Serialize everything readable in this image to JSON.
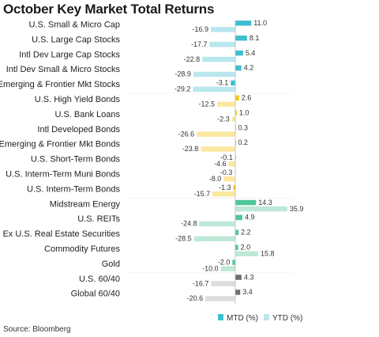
{
  "chart_data": {
    "type": "bar",
    "orientation": "horizontal",
    "title": "October Key Market Total Returns",
    "categories": [
      "U.S. Small & Micro Cap",
      "U.S. Large Cap Stocks",
      "Intl Dev Large Cap Stocks",
      "Intl Dev Small & Micro Stocks",
      "Emerging & Frontier Mkt Stocks",
      "U.S. High Yield Bonds",
      "U.S. Bank Loans",
      "Intl Developed Bonds",
      "Emerging & Frontier Mkt Bonds",
      "U.S. Short-Term Bonds",
      "U.S. Interm-Term Muni Bonds",
      "U.S. Interm-Term Bonds",
      "Midstream Energy",
      "U.S. REITs",
      "Ex U.S. Real Estate Securities",
      "Commodity Futures",
      "Gold",
      "U.S. 60/40",
      "Global 60/40"
    ],
    "series": [
      {
        "name": "MTD (%)",
        "values": [
          11.0,
          8.1,
          5.4,
          4.2,
          -3.1,
          2.6,
          1.0,
          0.3,
          0.2,
          -0.1,
          -0.3,
          -1.3,
          14.3,
          4.9,
          2.2,
          2.0,
          -2.0,
          4.3,
          3.4
        ]
      },
      {
        "name": "YTD (%)",
        "values": [
          -16.9,
          -17.7,
          -22.8,
          -28.9,
          -29.2,
          -12.5,
          -2.3,
          -26.6,
          -23.8,
          -4.6,
          -8.0,
          -15.7,
          35.9,
          -24.8,
          -28.5,
          15.8,
          -10.0,
          -16.7,
          -20.6
        ]
      }
    ],
    "value_labels": {
      "mtd": [
        "11.0",
        "8.1",
        "5.4",
        "4.2",
        "-3.1",
        "2.6",
        "1.0",
        "0.3",
        "0.2",
        "-0.1",
        "-0.3",
        "-1.3",
        "14.3",
        "4.9",
        "2.2",
        "2.0",
        "-2.0",
        "4.3",
        "3.4"
      ],
      "ytd": [
        "-16.9",
        "-17.7",
        "-22.8",
        "-28.9",
        "-29.2",
        "-12.5",
        "-2.3",
        "-26.6",
        "-23.8",
        "-4.6",
        "-8.0",
        "-15.7",
        "35.9",
        "-24.8",
        "-28.5",
        "15.8",
        "-10.0",
        "-16.7",
        "-20.6"
      ]
    },
    "group_colors": {
      "equity": {
        "mtd": "#3dbfcf",
        "ytd": "#b9e7ee"
      },
      "bond": {
        "mtd": "#f5c518",
        "ytd": "#fbe8a0"
      },
      "real_asset": {
        "mtd": "#4ec79a",
        "ytd": "#bde9d6"
      },
      "balanced": {
        "mtd": "#6e6e6e",
        "ytd": "#dddddd"
      }
    },
    "category_groups": [
      "equity",
      "equity",
      "equity",
      "equity",
      "equity",
      "bond",
      "bond",
      "bond",
      "bond",
      "bond",
      "bond",
      "bond",
      "real_asset",
      "real_asset",
      "real_asset",
      "real_asset",
      "real_asset",
      "balanced",
      "balanced"
    ],
    "xlim": [
      -30,
      37
    ],
    "grid": false,
    "legend_position": "bottom-right",
    "legend": [
      {
        "label": "MTD (%)",
        "color": "#3dbfcf"
      },
      {
        "label": "YTD (%)",
        "color": "#b9e7ee"
      }
    ]
  },
  "source": "Source: Bloomberg"
}
